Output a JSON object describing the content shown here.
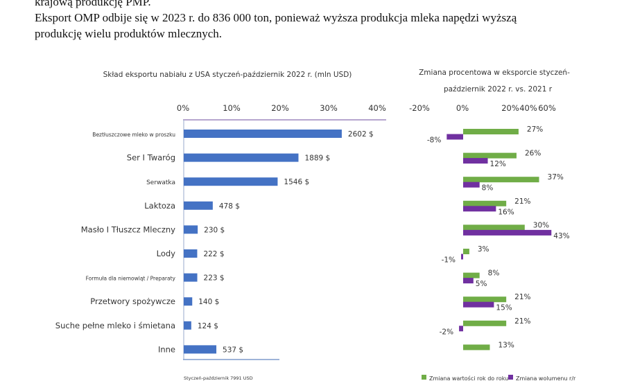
{
  "document": {
    "lines": [
      "krajową produkcję PMP.",
      "Eksport OMP odbije się w 2023 r. do 836 000 ton, ponieważ wyższa produkcja mleka napędzi wyższą",
      "produkcję wielu produktów mlecznych."
    ]
  },
  "chart_data": [
    {
      "type": "bar",
      "orientation": "horizontal",
      "title": "Skład eksportu nabiału z USA styczeń-październik 2022 r. (mln USD)",
      "categories": [
        "Beztłuszczowe mleko w proszku",
        "Ser I Twaróg",
        "Serwatka",
        "Laktoza",
        "Masło I Tłuszcz Mleczny",
        "Lody",
        "Formuła dla niemowląt / Preparaty",
        "Przetwory spożywcze",
        "Suche pełne mleko i śmietana",
        "Inne"
      ],
      "values": [
        2602,
        1889,
        1546,
        478,
        230,
        222,
        223,
        140,
        124,
        537
      ],
      "value_labels": [
        "2602 $",
        "1889 $",
        "1546 $",
        "478 $",
        "230 $",
        "222 $",
        "223 $",
        "140 $",
        "124 $",
        "537 $"
      ],
      "total": 7991,
      "x_ticks": [
        "0%",
        "10%",
        "20%",
        "30%",
        "40%"
      ],
      "xlim": [
        0,
        40
      ],
      "footnote": "Styczeń-październik 7991 USD",
      "color": "#4472c4"
    },
    {
      "type": "bar",
      "orientation": "horizontal",
      "title_lines": [
        "Zmiana procentowa w eksporcie styczeń-",
        "październik 2022 r. vs. 2021 r"
      ],
      "categories": [
        "Beztłuszczowe mleko w proszku",
        "Ser I Twaróg",
        "Serwatka",
        "Laktoza",
        "Masło I Tłuszcz Mleczny",
        "Lody",
        "Formuła dla niemowląt / Preparaty",
        "Przetwory spożywcze",
        "Suche pełne mleko i śmietana",
        "Inne"
      ],
      "x_ticks": [
        "-20%",
        "0%",
        "20%",
        "40%",
        "60%"
      ],
      "series": [
        {
          "name": "Zmiana wartości rok do roku",
          "color": "#70ad47",
          "values": [
            27,
            26,
            37,
            21,
            30,
            3,
            8,
            21,
            21,
            13
          ]
        },
        {
          "name": "Zmiana wolumenu r/r",
          "color": "#7030a0",
          "values": [
            -8,
            12,
            8,
            16,
            43,
            -1,
            5,
            15,
            -2,
            null
          ]
        }
      ],
      "legend": "bottom"
    }
  ]
}
